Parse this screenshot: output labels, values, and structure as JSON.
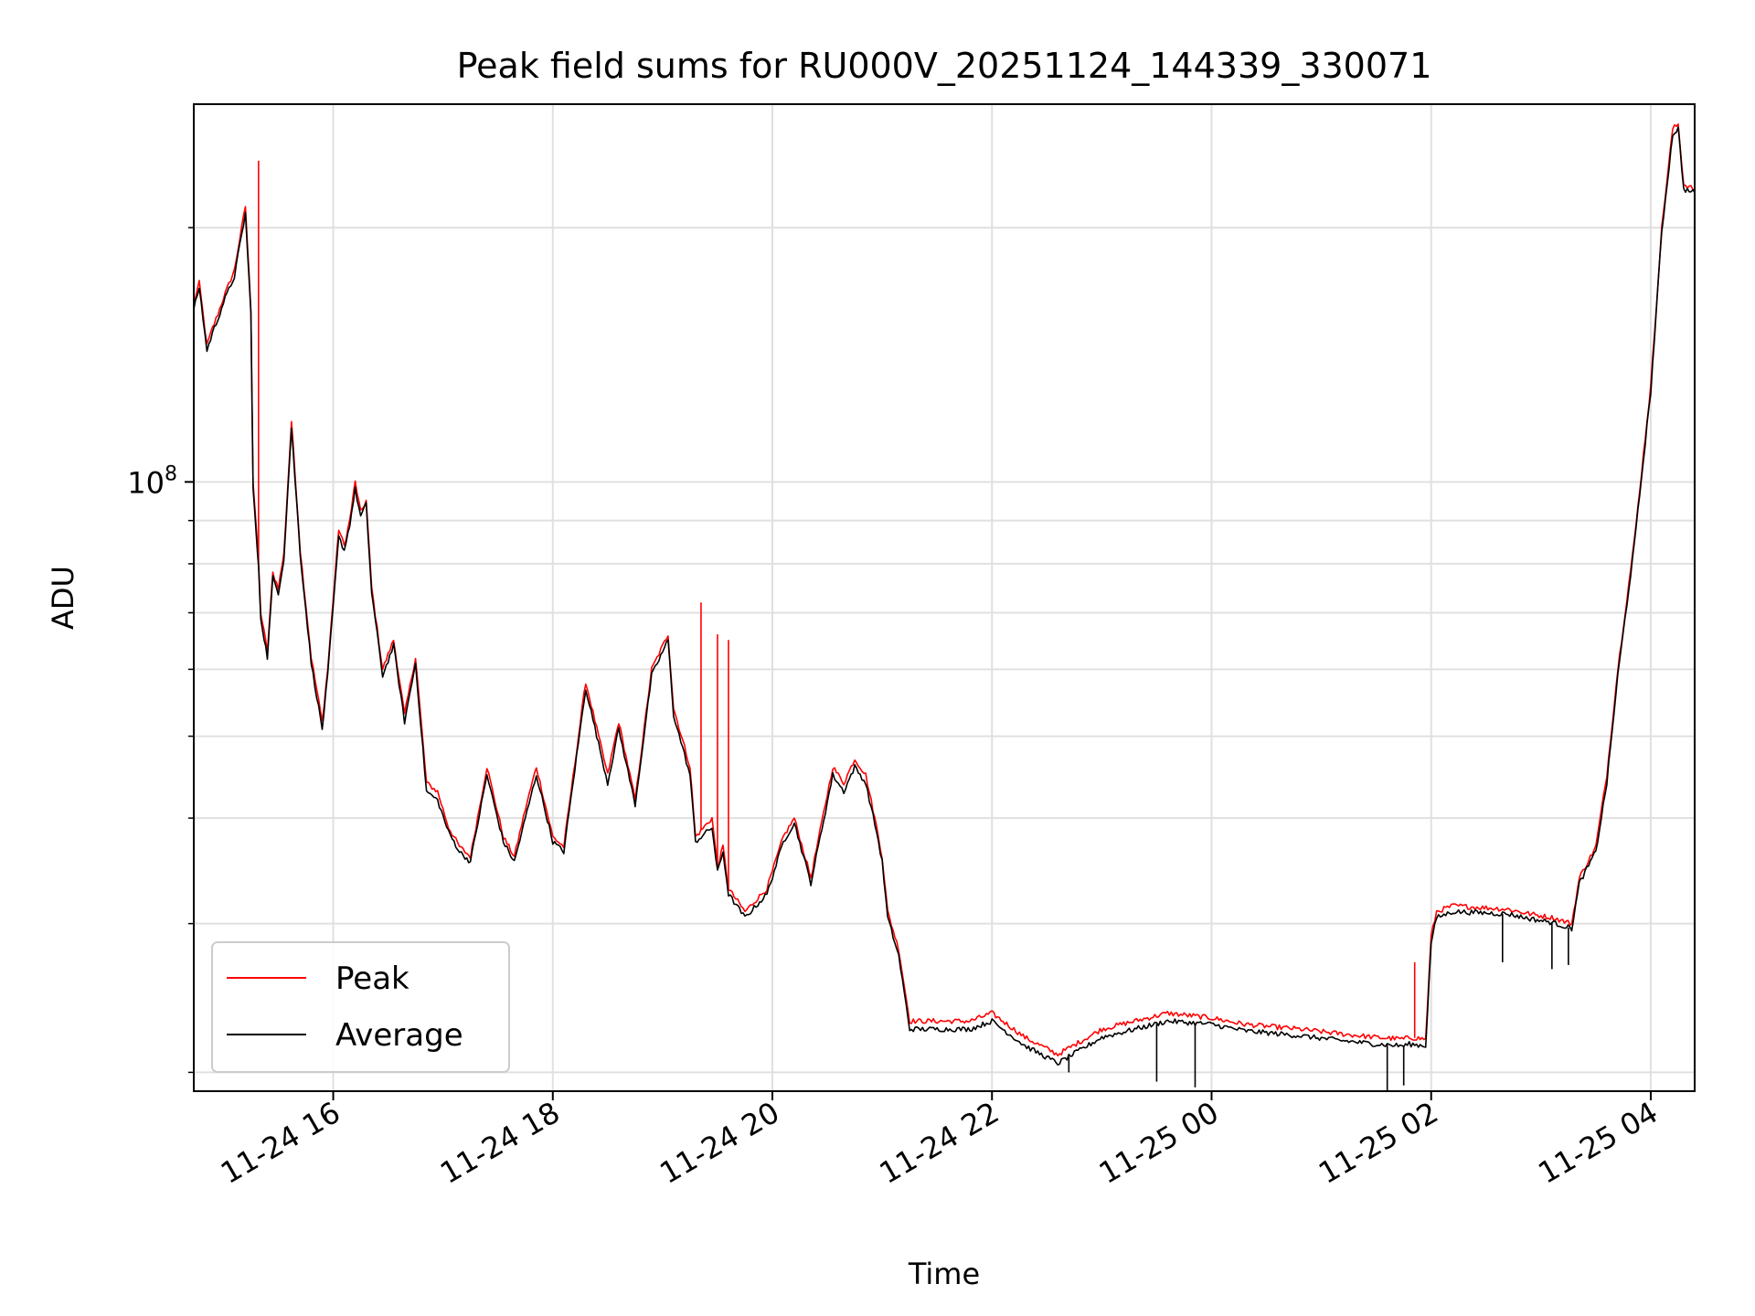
{
  "chart_data": {
    "type": "line",
    "title": "Peak field sums for RU000V_20251124_144339_330071",
    "xlabel": "Time",
    "ylabel": "ADU",
    "yscale": "log",
    "ylim": [
      19000000,
      280000000
    ],
    "xlim_hours": [
      14.73,
      28.4
    ],
    "grid": true,
    "legend_location": "lower left",
    "x_ticks": [
      {
        "hour": 16,
        "label": "11-24 16"
      },
      {
        "hour": 18,
        "label": "11-24 18"
      },
      {
        "hour": 20,
        "label": "11-24 20"
      },
      {
        "hour": 22,
        "label": "11-24 22"
      },
      {
        "hour": 24,
        "label": "11-25 00"
      },
      {
        "hour": 26,
        "label": "11-25 02"
      },
      {
        "hour": 28,
        "label": "11-25 04"
      }
    ],
    "y_major_ticks": [
      {
        "value": 100000000,
        "base": "10",
        "exp": "8"
      }
    ],
    "y_minor_ticks": [
      20000000,
      30000000,
      40000000,
      50000000,
      60000000,
      70000000,
      80000000,
      90000000,
      200000000
    ],
    "series": [
      {
        "name": "Peak",
        "color": "#ff0000",
        "x_hours": [
          14.73,
          14.78,
          14.85,
          14.9,
          14.95,
          15.0,
          15.1,
          15.2,
          15.25,
          15.27,
          15.3,
          15.32,
          15.34,
          15.4,
          15.45,
          15.5,
          15.55,
          15.62,
          15.7,
          15.8,
          15.9,
          15.95,
          16.05,
          16.1,
          16.15,
          16.2,
          16.25,
          16.3,
          16.35,
          16.45,
          16.55,
          16.65,
          16.75,
          16.85,
          16.95,
          17.05,
          17.1,
          17.15,
          17.25,
          17.4,
          17.55,
          17.65,
          17.75,
          17.85,
          18.0,
          18.1,
          18.3,
          18.5,
          18.6,
          18.75,
          18.9,
          19.05,
          19.1,
          19.25,
          19.3,
          19.45,
          19.5,
          19.55,
          19.6,
          19.75,
          19.95,
          20.1,
          20.2,
          20.35,
          20.55,
          20.65,
          20.75,
          20.85,
          20.95,
          21.0,
          21.05,
          21.15,
          21.25,
          21.5,
          21.8,
          22.0,
          22.3,
          22.6,
          23.0,
          23.3,
          23.6,
          24.0,
          24.3,
          24.8,
          25.2,
          25.5,
          25.75,
          25.8,
          25.95,
          26.0,
          26.05,
          26.2,
          26.7,
          26.9,
          27.1,
          27.28,
          27.35,
          27.5,
          27.6,
          27.7,
          27.85,
          28.0,
          28.1,
          28.2,
          28.25,
          28.3,
          28.4
        ],
        "values": [
          163000000,
          172000000,
          145000000,
          152000000,
          158000000,
          165000000,
          178000000,
          212000000,
          160000000,
          100000000,
          88000000,
          80000000,
          70000000,
          63000000,
          78000000,
          75000000,
          82000000,
          118000000,
          83000000,
          62000000,
          52000000,
          60000000,
          88000000,
          84000000,
          90000000,
          100000000,
          92000000,
          95000000,
          75000000,
          60000000,
          65000000,
          53000000,
          62000000,
          44000000,
          43000000,
          39000000,
          38000000,
          37000000,
          36000000,
          46000000,
          38000000,
          36000000,
          41000000,
          46000000,
          38000000,
          37000000,
          58000000,
          45000000,
          52000000,
          42000000,
          60000000,
          66000000,
          54000000,
          46000000,
          38000000,
          40000000,
          35000000,
          37000000,
          33000000,
          31000000,
          33000000,
          38000000,
          40000000,
          34000000,
          46000000,
          44000000,
          47000000,
          45000000,
          39000000,
          36000000,
          31000000,
          28000000,
          23000000,
          23000000,
          23000000,
          23500000,
          22000000,
          21000000,
          22500000,
          23000000,
          23500000,
          23200000,
          22800000,
          22500000,
          22200000,
          22000000,
          21900000,
          22000000,
          21900000,
          29000000,
          31000000,
          31500000,
          31200000,
          30800000,
          30500000,
          30000000,
          34000000,
          37000000,
          45000000,
          60000000,
          85000000,
          130000000,
          200000000,
          262000000,
          265000000,
          225000000,
          222000000
        ],
        "spikes": [
          [
            15.32,
            240000000
          ],
          [
            19.35,
            72000000
          ],
          [
            19.5,
            66000000
          ],
          [
            19.6,
            65000000
          ],
          [
            25.85,
            27000000
          ]
        ]
      },
      {
        "name": "Average",
        "color": "#000000",
        "x_hours": [
          14.73,
          14.78,
          14.85,
          14.9,
          14.95,
          15.0,
          15.1,
          15.2,
          15.25,
          15.27,
          15.3,
          15.32,
          15.34,
          15.4,
          15.45,
          15.5,
          15.55,
          15.62,
          15.7,
          15.8,
          15.9,
          15.95,
          16.05,
          16.1,
          16.15,
          16.2,
          16.25,
          16.3,
          16.35,
          16.45,
          16.55,
          16.65,
          16.75,
          16.85,
          16.95,
          17.05,
          17.1,
          17.15,
          17.25,
          17.4,
          17.55,
          17.65,
          17.75,
          17.85,
          18.0,
          18.1,
          18.3,
          18.5,
          18.6,
          18.75,
          18.9,
          19.05,
          19.1,
          19.25,
          19.3,
          19.45,
          19.5,
          19.55,
          19.6,
          19.75,
          19.95,
          20.1,
          20.2,
          20.35,
          20.55,
          20.65,
          20.75,
          20.85,
          20.95,
          21.0,
          21.05,
          21.15,
          21.25,
          21.5,
          21.8,
          22.0,
          22.3,
          22.6,
          23.0,
          23.3,
          23.6,
          24.0,
          24.3,
          24.8,
          25.2,
          25.5,
          25.75,
          25.8,
          25.95,
          26.0,
          26.05,
          26.2,
          26.7,
          26.9,
          27.1,
          27.28,
          27.35,
          27.5,
          27.6,
          27.7,
          27.85,
          28.0,
          28.1,
          28.2,
          28.25,
          28.3,
          28.4
        ],
        "values": [
          160000000,
          170000000,
          143000000,
          150000000,
          156000000,
          163000000,
          175000000,
          208000000,
          158000000,
          98000000,
          86000000,
          79000000,
          69000000,
          62000000,
          77000000,
          74000000,
          81000000,
          116000000,
          82000000,
          61000000,
          51000000,
          59000000,
          86000000,
          83000000,
          89000000,
          98000000,
          91000000,
          94000000,
          74000000,
          59000000,
          64000000,
          52000000,
          61000000,
          43000000,
          42000000,
          38500000,
          37500000,
          36500000,
          35500000,
          45000000,
          37500000,
          35500000,
          40000000,
          45000000,
          37500000,
          36500000,
          57000000,
          44000000,
          51000000,
          41500000,
          59000000,
          65000000,
          53000000,
          45000000,
          37500000,
          39000000,
          34500000,
          36500000,
          32500000,
          30500000,
          32500000,
          37500000,
          39500000,
          33500000,
          45000000,
          43000000,
          46000000,
          44000000,
          38500000,
          35500000,
          30500000,
          27500000,
          22500000,
          22500000,
          22500000,
          23000000,
          21500000,
          20500000,
          22000000,
          22500000,
          23000000,
          22800000,
          22400000,
          22100000,
          21800000,
          21600000,
          21500000,
          21600000,
          21500000,
          28500000,
          30500000,
          31000000,
          30800000,
          30400000,
          30100000,
          29600000,
          33500000,
          36500000,
          44000000,
          59000000,
          84000000,
          128000000,
          198000000,
          258000000,
          262000000,
          222000000,
          220000000
        ],
        "dips": [
          [
            23.5,
            19500000
          ],
          [
            23.85,
            19200000
          ],
          [
            25.6,
            19000000
          ],
          [
            25.75,
            19300000
          ],
          [
            26.65,
            27000000
          ],
          [
            27.1,
            26500000
          ],
          [
            27.25,
            26800000
          ],
          [
            22.7,
            20000000
          ]
        ]
      }
    ]
  }
}
